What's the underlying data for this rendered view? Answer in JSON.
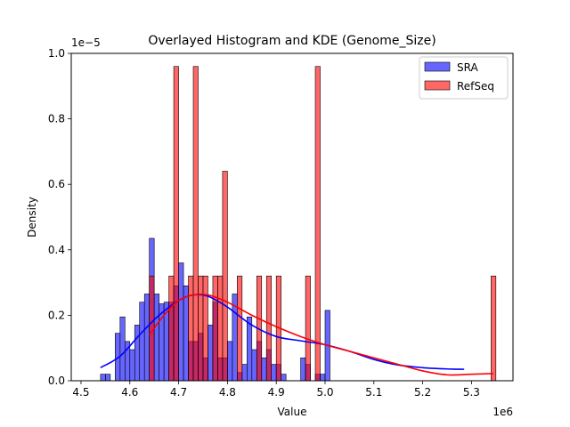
{
  "chart_data": {
    "type": "bar",
    "title": "Overlayed Histogram and KDE (Genome_Size)",
    "xlabel": "Value",
    "ylabel": "Density",
    "x_offset_label": "1e6",
    "y_offset_label": "1e−5",
    "xlim": [
      4.48,
      5.385
    ],
    "ylim": [
      0,
      1.0
    ],
    "xticks": [
      4.5,
      4.6,
      4.7,
      4.8,
      4.9,
      5.0,
      5.1,
      5.2,
      5.3
    ],
    "xtick_labels": [
      "4.5",
      "4.6",
      "4.7",
      "4.8",
      "4.9",
      "5.0",
      "5.1",
      "5.2",
      "5.3"
    ],
    "yticks": [
      0.0,
      0.2,
      0.4,
      0.6,
      0.8,
      1.0
    ],
    "ytick_labels": [
      "0.0",
      "0.2",
      "0.4",
      "0.6",
      "0.8",
      "1.0"
    ],
    "legend_position": "top-right",
    "grid": false,
    "series": [
      {
        "name": "SRA",
        "color": "#0000ff",
        "bin_start": 4.54,
        "bin_width": 0.01,
        "values": [
          0.02,
          0.02,
          0,
          0.145,
          0.195,
          0.12,
          0.095,
          0.17,
          0.24,
          0.265,
          0.435,
          0.265,
          0.235,
          0.24,
          0.24,
          0.29,
          0.36,
          0.29,
          0.12,
          0.12,
          0.145,
          0.07,
          0.17,
          0.24,
          0.07,
          0.07,
          0.12,
          0.265,
          0.025,
          0.05,
          0.195,
          0.095,
          0.12,
          0.07,
          0.095,
          0.05,
          0.05,
          0.02,
          0,
          0,
          0,
          0.07,
          0.05,
          0,
          0.02,
          0.02,
          0.215
        ],
        "kde_x": [
          4.54,
          4.58,
          4.62,
          4.66,
          4.7,
          4.73,
          4.76,
          4.8,
          4.85,
          4.9,
          4.95,
          5.0,
          5.05,
          5.1,
          5.15,
          5.2,
          5.25,
          5.285
        ],
        "kde_y": [
          0.04,
          0.075,
          0.14,
          0.2,
          0.245,
          0.262,
          0.258,
          0.225,
          0.17,
          0.135,
          0.122,
          0.11,
          0.09,
          0.065,
          0.048,
          0.04,
          0.036,
          0.035
        ]
      },
      {
        "name": "RefSeq",
        "color": "#ff0000",
        "bin_start": 4.64,
        "bin_width": 0.01,
        "values": [
          0.32,
          0,
          0,
          0,
          0.32,
          0.96,
          0,
          0,
          0.32,
          0.96,
          0.32,
          0.32,
          0,
          0.32,
          0.32,
          0.64,
          0,
          0,
          0.32,
          0,
          0,
          0,
          0.32,
          0,
          0.32,
          0,
          0.32,
          0,
          0,
          0,
          0,
          0,
          0.32,
          0,
          0.96,
          0,
          0,
          0,
          0,
          0,
          0,
          0,
          0,
          0,
          0,
          0,
          0,
          0,
          0,
          0,
          0,
          0,
          0,
          0,
          0,
          0,
          0,
          0,
          0,
          0,
          0,
          0,
          0,
          0,
          0,
          0,
          0,
          0,
          0,
          0,
          0.32
        ],
        "kde_x": [
          4.64,
          4.67,
          4.7,
          4.73,
          4.76,
          4.8,
          4.85,
          4.9,
          4.95,
          5.0,
          5.05,
          5.1,
          5.15,
          5.2,
          5.25,
          5.3,
          5.345
        ],
        "kde_y": [
          0.14,
          0.2,
          0.245,
          0.262,
          0.262,
          0.24,
          0.2,
          0.165,
          0.135,
          0.11,
          0.09,
          0.07,
          0.05,
          0.03,
          0.018,
          0.02,
          0.022
        ]
      }
    ]
  }
}
